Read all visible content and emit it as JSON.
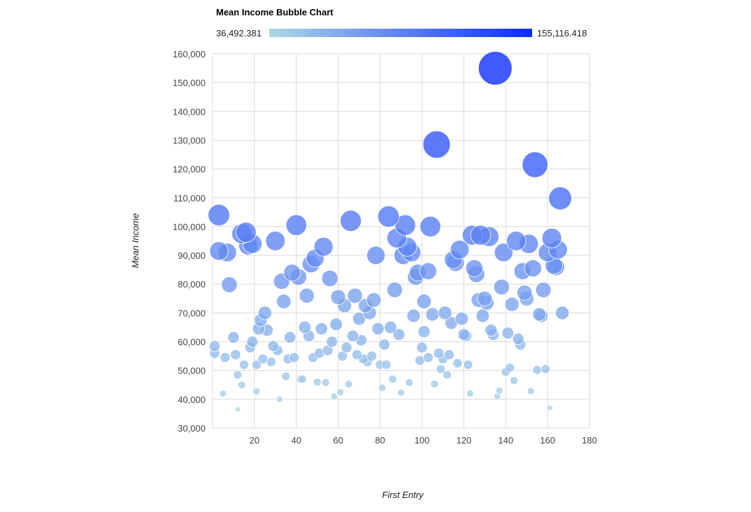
{
  "chart_data": {
    "type": "scatter",
    "title": "Mean Income Bubble Chart",
    "xlabel": "First Entry",
    "ylabel": "Mean Income",
    "xlim": [
      0,
      180
    ],
    "ylim": [
      30000,
      160000
    ],
    "x_ticks": [
      20,
      40,
      60,
      80,
      100,
      120,
      140,
      160,
      180
    ],
    "y_ticks": [
      30000,
      40000,
      50000,
      60000,
      70000,
      80000,
      90000,
      100000,
      110000,
      120000,
      130000,
      140000,
      150000,
      160000
    ],
    "x_tick_labels": [
      "20",
      "40",
      "60",
      "80",
      "100",
      "120",
      "140",
      "160",
      "180"
    ],
    "y_tick_labels": [
      "30,000",
      "40,000",
      "50,000",
      "60,000",
      "70,000",
      "80,000",
      "90,000",
      "100,000",
      "110,000",
      "120,000",
      "130,000",
      "140,000",
      "150,000",
      "160,000"
    ],
    "grid": true,
    "bubble_size_and_color": "Mean Income",
    "colorbar": {
      "min": 36492.381,
      "max": 155116.418,
      "min_label": "36,492.381",
      "max_label": "155,116.418",
      "color_low": "#add8e6",
      "color_high": "#0a2cff"
    },
    "points": [
      [
        1,
        58500
      ],
      [
        1,
        56000
      ],
      [
        3,
        104000
      ],
      [
        3,
        91500
      ],
      [
        5,
        42000
      ],
      [
        6,
        54500
      ],
      [
        7,
        91000
      ],
      [
        8,
        79800
      ],
      [
        10,
        61500
      ],
      [
        11,
        55500
      ],
      [
        12,
        48500
      ],
      [
        12,
        36500
      ],
      [
        14,
        45000
      ],
      [
        14,
        97500
      ],
      [
        15,
        52000
      ],
      [
        16,
        98000
      ],
      [
        17,
        93500
      ],
      [
        18,
        58000
      ],
      [
        19,
        60000
      ],
      [
        19,
        94000
      ],
      [
        21,
        42700
      ],
      [
        21,
        52000
      ],
      [
        22,
        64500
      ],
      [
        23,
        67500
      ],
      [
        24,
        54000
      ],
      [
        25,
        70000
      ],
      [
        26,
        64000
      ],
      [
        28,
        53000
      ],
      [
        29,
        58500
      ],
      [
        30,
        95000
      ],
      [
        31,
        57000
      ],
      [
        32,
        40000
      ],
      [
        33,
        81000
      ],
      [
        34,
        74000
      ],
      [
        35,
        48000
      ],
      [
        36,
        54000
      ],
      [
        37,
        61500
      ],
      [
        38,
        84000
      ],
      [
        39,
        54500
      ],
      [
        40,
        100500
      ],
      [
        41,
        82500
      ],
      [
        42,
        47000
      ],
      [
        43,
        47000
      ],
      [
        44,
        65000
      ],
      [
        45,
        76000
      ],
      [
        46,
        62000
      ],
      [
        47,
        87000
      ],
      [
        48,
        54500
      ],
      [
        49,
        89000
      ],
      [
        50,
        46000
      ],
      [
        51,
        56000
      ],
      [
        52,
        64500
      ],
      [
        53,
        93000
      ],
      [
        54,
        45800
      ],
      [
        55,
        57000
      ],
      [
        56,
        82000
      ],
      [
        57,
        60000
      ],
      [
        58,
        41000
      ],
      [
        59,
        66000
      ],
      [
        60,
        75500
      ],
      [
        61,
        42500
      ],
      [
        62,
        55000
      ],
      [
        63,
        72500
      ],
      [
        64,
        58000
      ],
      [
        65,
        45300
      ],
      [
        66,
        102000
      ],
      [
        67,
        62000
      ],
      [
        68,
        76000
      ],
      [
        69,
        55500
      ],
      [
        70,
        68000
      ],
      [
        71,
        60500
      ],
      [
        72,
        54000
      ],
      [
        73,
        72500
      ],
      [
        74,
        53000
      ],
      [
        75,
        70000
      ],
      [
        76,
        55000
      ],
      [
        77,
        74500
      ],
      [
        78,
        90000
      ],
      [
        79,
        64500
      ],
      [
        80,
        52000
      ],
      [
        81,
        44000
      ],
      [
        82,
        59000
      ],
      [
        83,
        52000
      ],
      [
        84,
        103500
      ],
      [
        85,
        65000
      ],
      [
        86,
        47000
      ],
      [
        87,
        78000
      ],
      [
        88,
        96000
      ],
      [
        89,
        62500
      ],
      [
        90,
        42300
      ],
      [
        91,
        90000
      ],
      [
        92,
        100500
      ],
      [
        93,
        93000
      ],
      [
        94,
        45800
      ],
      [
        95,
        91000
      ],
      [
        96,
        69000
      ],
      [
        97,
        82500
      ],
      [
        98,
        84000
      ],
      [
        99,
        53500
      ],
      [
        100,
        58000
      ],
      [
        101,
        63500
      ],
      [
        101,
        74000
      ],
      [
        103,
        54500
      ],
      [
        103,
        84500
      ],
      [
        104,
        100000
      ],
      [
        105,
        69500
      ],
      [
        106,
        45300
      ],
      [
        107,
        128500
      ],
      [
        108,
        56000
      ],
      [
        109,
        50500
      ],
      [
        110,
        54000
      ],
      [
        111,
        70000
      ],
      [
        112,
        48500
      ],
      [
        113,
        55500
      ],
      [
        114,
        66500
      ],
      [
        115,
        88500
      ],
      [
        116,
        87500
      ],
      [
        117,
        52500
      ],
      [
        118,
        92000
      ],
      [
        119,
        68000
      ],
      [
        120,
        62500
      ],
      [
        121,
        62000
      ],
      [
        122,
        52000
      ],
      [
        123,
        42000
      ],
      [
        124,
        97000
      ],
      [
        125,
        85500
      ],
      [
        126,
        83500
      ],
      [
        127,
        74500
      ],
      [
        128,
        97000
      ],
      [
        129,
        69000
      ],
      [
        130,
        75000
      ],
      [
        131,
        73500
      ],
      [
        132,
        96500
      ],
      [
        133,
        64000
      ],
      [
        134,
        62500
      ],
      [
        135,
        155000
      ],
      [
        136,
        41000
      ],
      [
        137,
        43000
      ],
      [
        138,
        79000
      ],
      [
        139,
        91000
      ],
      [
        140,
        49500
      ],
      [
        141,
        63000
      ],
      [
        142,
        51000
      ],
      [
        143,
        73000
      ],
      [
        144,
        46500
      ],
      [
        145,
        95000
      ],
      [
        146,
        61000
      ],
      [
        147,
        59000
      ],
      [
        148,
        84500
      ],
      [
        149,
        77000
      ],
      [
        150,
        75000
      ],
      [
        151,
        94000
      ],
      [
        152,
        42800
      ],
      [
        153,
        85500
      ],
      [
        154,
        121500
      ],
      [
        155,
        50200
      ],
      [
        156,
        69500
      ],
      [
        157,
        69000
      ],
      [
        158,
        78000
      ],
      [
        159,
        50500
      ],
      [
        160,
        91000
      ],
      [
        161,
        37000
      ],
      [
        162,
        96000
      ],
      [
        163,
        86500
      ],
      [
        164,
        86000
      ],
      [
        165,
        92000
      ],
      [
        166,
        109800
      ],
      [
        167,
        70000
      ]
    ]
  }
}
